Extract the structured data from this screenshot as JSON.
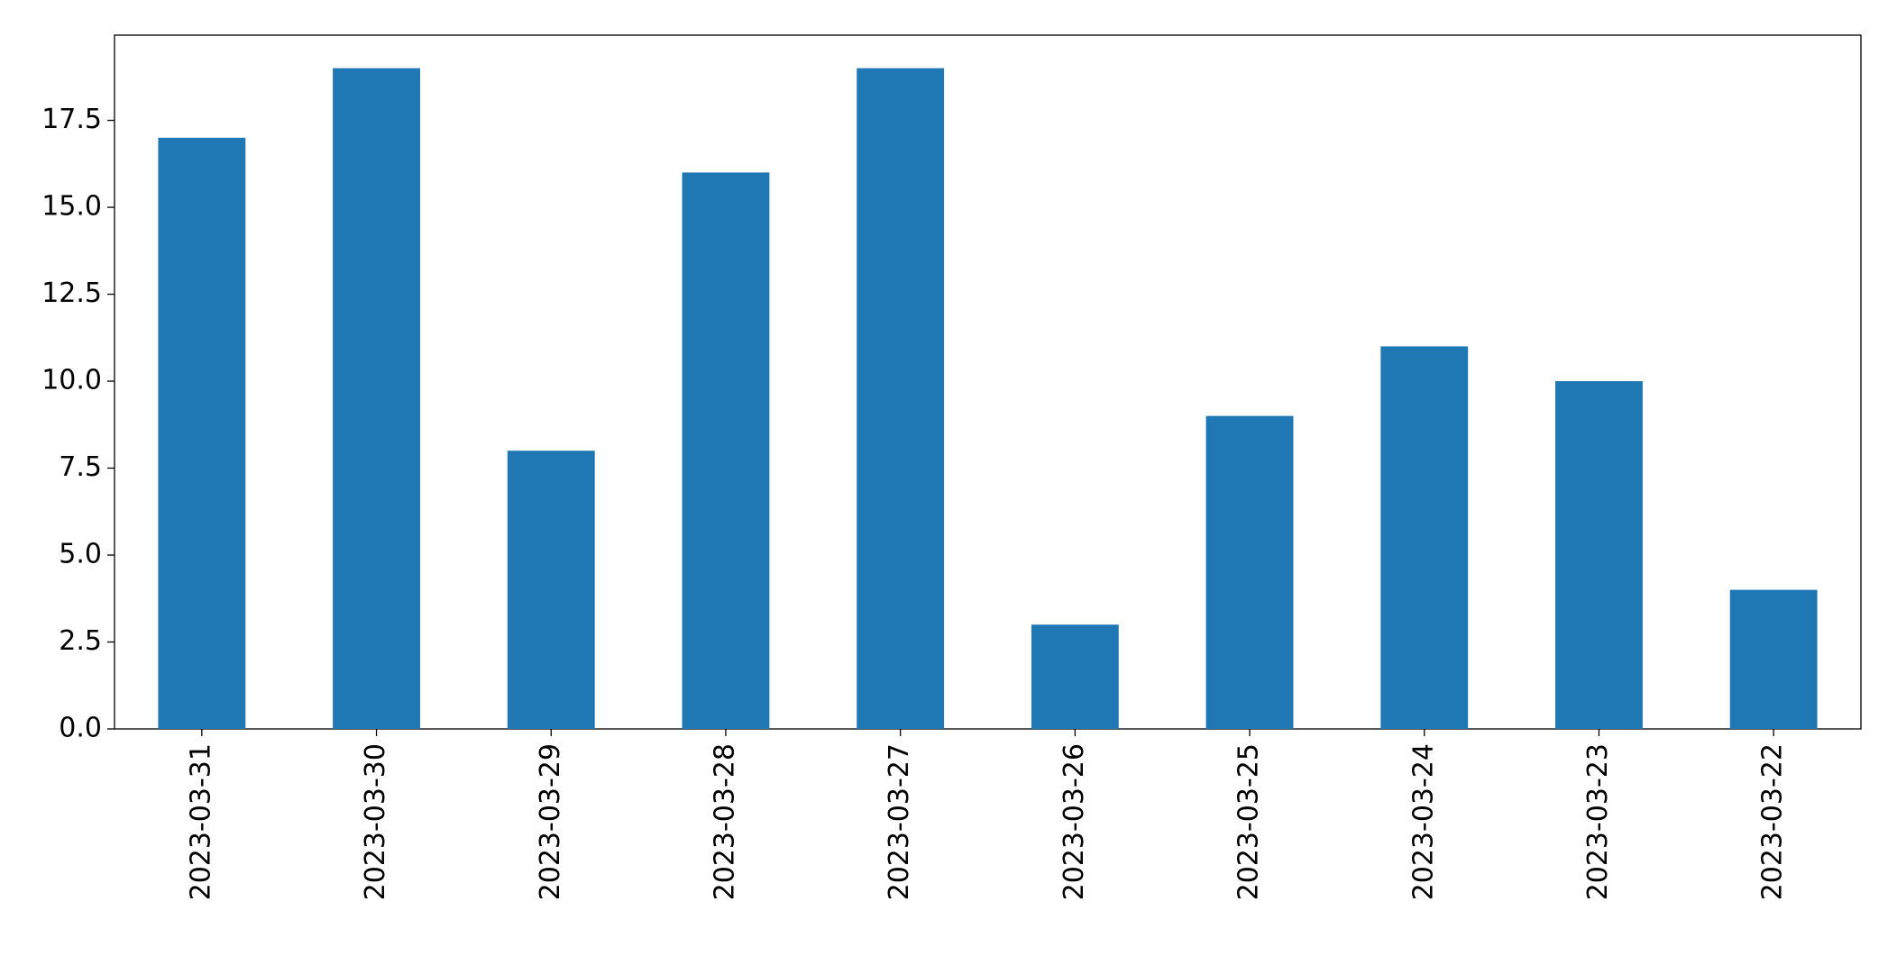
{
  "chart_data": {
    "type": "bar",
    "categories": [
      "2023-03-31",
      "2023-03-30",
      "2023-03-29",
      "2023-03-28",
      "2023-03-27",
      "2023-03-26",
      "2023-03-25",
      "2023-03-24",
      "2023-03-23",
      "2023-03-22"
    ],
    "values": [
      17,
      19,
      8,
      16,
      19,
      3,
      9,
      11,
      10,
      4
    ],
    "color": "#1f77b4",
    "ylim": [
      0,
      19.95
    ],
    "yticks": [
      {
        "value": 0,
        "label": "0.0"
      },
      2.5,
      {
        "value": 5,
        "label": "5.0"
      },
      7.5,
      {
        "value": 10,
        "label": "10.0"
      },
      12.5,
      {
        "value": 15,
        "label": "15.0"
      },
      17.5
    ],
    "grid": false
  }
}
